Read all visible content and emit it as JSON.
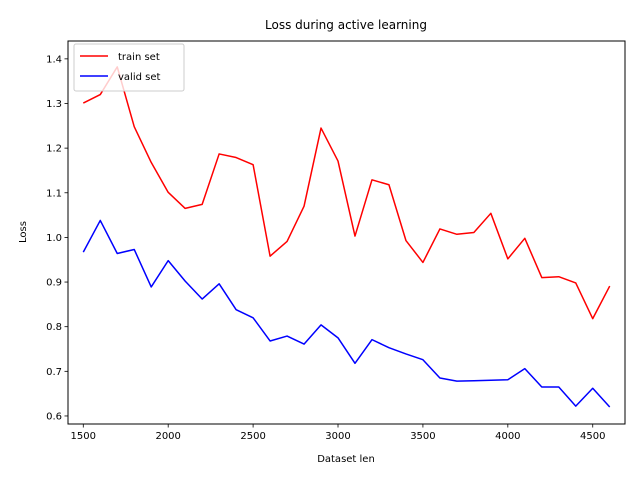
{
  "chart_data": {
    "type": "line",
    "title": "Loss during active learning",
    "xlabel": "Dataset len",
    "ylabel": "Loss",
    "xlim": [
      1410,
      4690
    ],
    "ylim": [
      0.582,
      1.44
    ],
    "xticks": [
      1500,
      2000,
      2500,
      3000,
      3500,
      4000,
      4500
    ],
    "yticks": [
      0.6,
      0.7,
      0.8,
      0.9,
      1.0,
      1.1,
      1.2,
      1.3,
      1.4
    ],
    "grid": false,
    "legend_position": "top-left",
    "x": [
      1500,
      1600,
      1700,
      1800,
      1900,
      2000,
      2100,
      2200,
      2300,
      2400,
      2500,
      2600,
      2700,
      2800,
      2900,
      3000,
      3100,
      3200,
      3300,
      3400,
      3500,
      3600,
      3700,
      3800,
      3900,
      4000,
      4100,
      4200,
      4300,
      4400,
      4500,
      4600
    ],
    "series": [
      {
        "name": "train set",
        "color": "#ff0000",
        "values": [
          1.301,
          1.32,
          1.382,
          1.248,
          1.168,
          1.101,
          1.065,
          1.074,
          1.187,
          1.179,
          1.163,
          0.958,
          0.991,
          1.07,
          1.245,
          1.171,
          1.003,
          1.129,
          1.118,
          0.993,
          0.944,
          1.019,
          1.007,
          1.011,
          1.054,
          0.952,
          0.998,
          0.91,
          0.912,
          0.898,
          0.818,
          0.891
        ]
      },
      {
        "name": "valid set",
        "color": "#0000ff",
        "values": [
          0.967,
          1.038,
          0.964,
          0.973,
          0.889,
          0.948,
          0.902,
          0.862,
          0.896,
          0.838,
          0.82,
          0.768,
          0.779,
          0.761,
          0.804,
          0.775,
          0.718,
          0.771,
          0.753,
          0.739,
          0.726,
          0.685,
          0.678,
          0.679,
          0.68,
          0.681,
          0.706,
          0.665,
          0.665,
          0.622,
          0.662,
          0.62
        ]
      }
    ]
  }
}
